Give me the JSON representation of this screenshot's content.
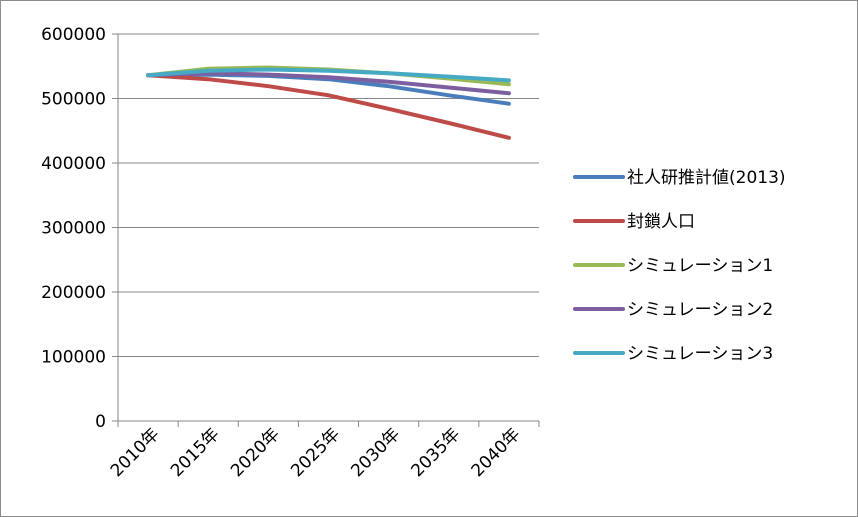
{
  "chart_data": {
    "type": "line",
    "title": "",
    "xlabel": "",
    "ylabel": "",
    "categories": [
      "2010年",
      "2015年",
      "2020年",
      "2025年",
      "2030年",
      "2035年",
      "2040年"
    ],
    "ylim": [
      0,
      600000
    ],
    "yticks": [
      0,
      100000,
      200000,
      300000,
      400000,
      500000,
      600000
    ],
    "ytick_labels": [
      "0",
      "100000",
      "200000",
      "300000",
      "400000",
      "500000",
      "600000"
    ],
    "grid": "horizontal major gridlines",
    "legend_position": "right",
    "series": [
      {
        "name": "社人研推計値(2013)",
        "color": "#4a7ebb",
        "values": [
          536000,
          537000,
          535000,
          530000,
          519000,
          505000,
          492000
        ]
      },
      {
        "name": "封鎖人口",
        "color": "#be4b48",
        "values": [
          536000,
          530000,
          519000,
          505000,
          484000,
          462000,
          439000
        ]
      },
      {
        "name": "シミュレーション1",
        "color": "#98b954",
        "values": [
          536000,
          546000,
          548000,
          545000,
          539000,
          531000,
          522000
        ]
      },
      {
        "name": "シミュレーション2",
        "color": "#7d5fa0",
        "values": [
          536000,
          539000,
          537000,
          533000,
          526000,
          517000,
          508000
        ]
      },
      {
        "name": "シミュレーション3",
        "color": "#46aac5",
        "values": [
          536000,
          543000,
          545000,
          543000,
          539000,
          534000,
          528000
        ]
      }
    ]
  }
}
